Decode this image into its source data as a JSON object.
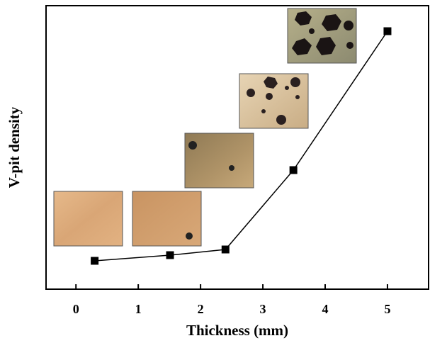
{
  "chart_data": {
    "type": "line",
    "x_label": "Thickness (mm)",
    "y_label": "V-pit density",
    "series": [
      {
        "color": "#000000",
        "x": [
          0.3,
          1.51,
          2.4,
          3.49,
          5.0
        ],
        "values": [
          10,
          12,
          14,
          42,
          91
        ]
      }
    ],
    "xlim": [
      -0.48,
      5.66
    ],
    "xticks": [
      0,
      1,
      2,
      3,
      4,
      5
    ],
    "ylim": [
      0,
      100
    ],
    "marker": "square"
  }
}
